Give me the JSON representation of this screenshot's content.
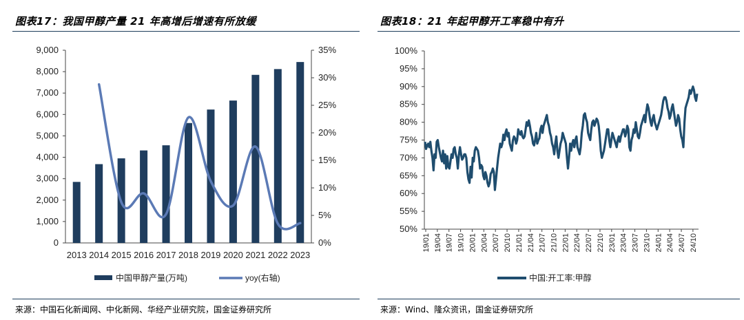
{
  "left": {
    "title": "图表17：我国甲醇产量 21 年高增后增速有所放缓",
    "source": "来源：中国石化新闻网、中化新网、华经产业研究院，国金证券研究所"
  },
  "right": {
    "title": "图表18：21 年起甲醇开工率稳中有升",
    "source": "来源：Wind、隆众资讯，国金证券研究所"
  },
  "colors": {
    "bar": "#1f3d5e",
    "line": "#5b7ab5",
    "rate_line": "#1f4d6e"
  },
  "chart_data": [
    {
      "type": "bar",
      "categories": [
        "2013",
        "2014",
        "2015",
        "2016",
        "2017",
        "2018",
        "2019",
        "2020",
        "2021",
        "2022",
        "2023"
      ],
      "series": [
        {
          "name": "中国甲醇产量(万吨)",
          "type": "bar",
          "axis": "left",
          "values": [
            2850,
            3680,
            3950,
            4320,
            4560,
            5600,
            6230,
            6650,
            7850,
            8120,
            8450
          ]
        },
        {
          "name": "yoy(右轴)",
          "type": "line",
          "axis": "right",
          "values": [
            null,
            28.8,
            7.4,
            9.0,
            5.2,
            22.8,
            11.2,
            6.8,
            17.5,
            3.5,
            3.6
          ]
        }
      ],
      "ylim": [
        0,
        9000
      ],
      "yticks": [
        "9,000",
        "8,000",
        "7,000",
        "6,000",
        "5,000",
        "4,000",
        "3,000",
        "2,000",
        "1,000",
        "0"
      ],
      "y2lim": [
        0,
        35
      ],
      "y2ticks": [
        "35%",
        "30%",
        "25%",
        "20%",
        "15%",
        "10%",
        "5%",
        "0%"
      ],
      "legend": [
        "中国甲醇产量(万吨)",
        "yoy(右轴)"
      ]
    },
    {
      "type": "line",
      "series": [
        {
          "name": "中国:开工率:甲醇",
          "values": [
            74.5,
            72.5,
            73.5,
            74,
            73,
            74.5,
            72,
            70,
            66.5,
            71,
            70,
            74.5,
            75,
            73,
            71.5,
            70,
            69,
            72,
            68.5,
            71,
            67,
            70.5,
            67.5,
            67,
            69,
            71,
            70,
            72.5,
            73,
            71,
            70,
            67,
            71,
            73,
            71,
            69.5,
            70,
            71,
            71,
            70,
            66,
            64,
            63,
            67.5,
            64.5,
            70,
            69,
            72,
            73,
            72.5,
            72,
            70,
            67,
            68,
            67.5,
            65,
            64,
            66,
            65,
            63,
            62,
            63,
            65.5,
            66,
            67,
            66,
            61,
            64,
            67,
            70,
            72,
            74,
            73,
            74,
            76.5,
            75,
            77,
            78,
            76,
            77,
            74,
            73,
            72,
            75,
            76,
            75.5,
            74,
            75,
            78,
            77,
            76.5,
            77.5,
            76,
            75.5,
            76,
            78,
            80,
            79,
            80.5,
            79,
            77,
            76,
            74,
            73.5,
            75,
            77,
            74,
            75,
            75.5,
            78,
            79,
            77,
            79,
            80,
            81,
            82,
            80,
            79,
            77,
            76,
            74,
            73,
            71,
            74,
            76,
            72,
            70,
            72,
            74,
            75,
            77,
            76,
            75,
            74,
            70,
            67,
            70,
            74,
            72,
            74,
            75,
            73,
            75,
            76,
            73,
            72,
            71,
            73,
            77,
            79,
            82,
            82.5,
            81,
            80,
            77,
            76,
            75,
            78,
            80,
            80.5,
            79,
            80,
            81,
            80.5,
            79,
            76,
            72,
            70,
            71,
            72,
            74,
            76,
            78,
            78,
            75,
            73,
            75,
            77,
            76,
            75,
            74,
            73,
            75,
            76,
            74.5,
            76,
            77,
            78,
            78,
            76,
            77,
            79,
            78,
            73,
            72,
            75,
            76,
            78,
            77,
            80,
            78,
            76,
            75.5,
            77,
            79,
            80,
            81,
            82,
            80,
            83,
            85,
            84,
            82,
            80,
            79,
            81,
            82,
            80,
            79,
            78,
            79,
            80,
            81,
            82,
            84,
            86,
            87,
            87,
            86,
            84,
            83,
            81,
            82,
            84,
            85,
            83,
            81,
            79,
            80,
            82,
            81,
            78,
            76,
            75,
            73,
            80,
            84,
            85,
            86,
            87,
            89,
            88,
            89,
            90,
            89,
            87,
            86,
            88
          ]
        }
      ],
      "ylim": [
        50,
        100
      ],
      "yticks": [
        "100%",
        "95%",
        "90%",
        "85%",
        "80%",
        "75%",
        "70%",
        "65%",
        "60%",
        "55%",
        "50%"
      ],
      "xticks": [
        "19/01",
        "19/04",
        "19/07",
        "19/10",
        "20/01",
        "20/04",
        "20/07",
        "20/10",
        "21/01",
        "21/04",
        "21/07",
        "21/10",
        "22/01",
        "22/04",
        "22/07",
        "22/10",
        "23/01",
        "23/04",
        "23/07",
        "23/10",
        "24/01",
        "24/04",
        "24/07",
        "24/10"
      ],
      "legend": [
        "中国:开工率:甲醇"
      ]
    }
  ]
}
